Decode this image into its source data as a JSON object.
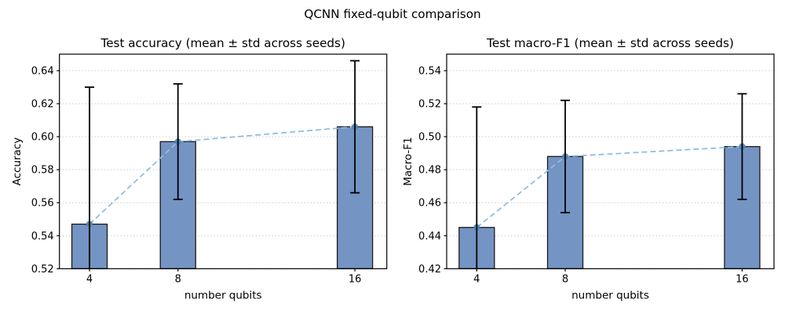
{
  "figure": {
    "title": "QCNN fixed-qubit comparison",
    "background": "#ffffff"
  },
  "style": {
    "bar_fill": "#7494c4",
    "bar_edge": "#1a1a1a",
    "error_color": "#000000",
    "line_color": "#93bddc",
    "marker_color": "#4e84b4",
    "grid_color": "#cccccc",
    "spine_color": "#000000",
    "text_color": "#000000"
  },
  "chart_data": [
    {
      "type": "bar",
      "title": "Test accuracy (mean ± std across seeds)",
      "xlabel": "number qubits",
      "ylabel": "Accuracy",
      "categories": [
        4,
        8,
        16
      ],
      "xticklabels": [
        "4",
        "8",
        "16"
      ],
      "series": [
        {
          "name": "mean",
          "values": [
            0.547,
            0.597,
            0.606
          ]
        },
        {
          "name": "std",
          "values": [
            0.083,
            0.035,
            0.04
          ]
        }
      ],
      "error_bars": "mean ± std, black with caps, clipped at axis bottom",
      "overlay": "light-blue dashed line with circle markers through bar means",
      "ylim": [
        0.52,
        0.65
      ],
      "yticks": [
        0.52,
        0.54,
        0.56,
        0.58,
        0.6,
        0.62,
        0.64
      ],
      "xlim": [
        2.64,
        17.44
      ],
      "grid": "horizontal dotted",
      "legend": "none"
    },
    {
      "type": "bar",
      "title": "Test macro-F1 (mean ± std across seeds)",
      "xlabel": "number qubits",
      "ylabel": "Macro-F1",
      "categories": [
        4,
        8,
        16
      ],
      "xticklabels": [
        "4",
        "8",
        "16"
      ],
      "series": [
        {
          "name": "mean",
          "values": [
            0.445,
            0.488,
            0.494
          ]
        },
        {
          "name": "std",
          "values": [
            0.073,
            0.034,
            0.032
          ]
        }
      ],
      "error_bars": "mean ± std, black with caps, clipped at axis bottom",
      "overlay": "light-blue dashed line with circle markers through bar means",
      "ylim": [
        0.42,
        0.55
      ],
      "yticks": [
        0.42,
        0.44,
        0.46,
        0.48,
        0.5,
        0.52,
        0.54
      ],
      "xlim": [
        2.64,
        17.44
      ],
      "grid": "horizontal dotted",
      "legend": "none"
    }
  ]
}
